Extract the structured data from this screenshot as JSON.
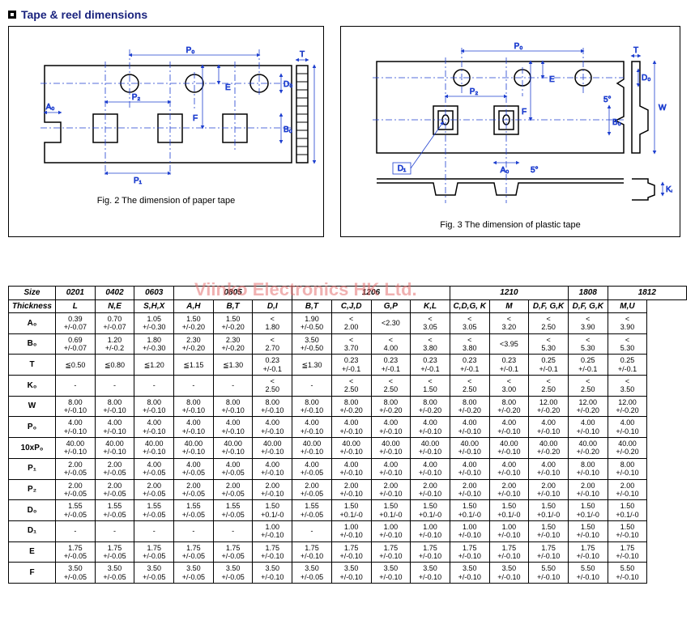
{
  "title": "Tape & reel dimensions",
  "fig2_caption": "Fig. 2 The dimension of paper tape",
  "fig3_caption": "Fig. 3 The dimension of plastic tape",
  "watermark": "Viinko Electronics HK Ltd.",
  "diagram_labels": {
    "P0": "P₀",
    "P1": "P₁",
    "P2": "P₂",
    "A0": "A₀",
    "B0": "B₀",
    "D0": "D₀",
    "D1": "D₁",
    "K0": "K₀",
    "E": "E",
    "F": "F",
    "T": "T",
    "W": "W",
    "5deg": "5°"
  },
  "colors": {
    "diagram_stroke": "#000000",
    "dim_line": "#1e3fcf",
    "center_line": "#1e3fcf",
    "header_text": "#1a237e",
    "watermark": "#e57373"
  },
  "table": {
    "size_label": "Size",
    "thickness_label": "Thickness",
    "size_groups": [
      {
        "label": "0201",
        "span": 1
      },
      {
        "label": "0402",
        "span": 1
      },
      {
        "label": "0603",
        "span": 1
      },
      {
        "label": "0805",
        "span": 3
      },
      {
        "label": "1206",
        "span": 4
      },
      {
        "label": "1210",
        "span": 3
      },
      {
        "label": "1808",
        "span": 1
      },
      {
        "label": "1812",
        "span": 2
      }
    ],
    "thickness_cols": [
      "L",
      "N,E",
      "S,H,X",
      "A,H",
      "B,T",
      "D,I",
      "B,T",
      "C,J,D",
      "G,P",
      "K,L",
      "C,D,G, K",
      "M",
      "D,F, G,K",
      "D,F, G,K",
      "M,U"
    ],
    "rows": [
      {
        "h": "A₀",
        "c": [
          "0.39 +/-0.07",
          "0.70 +/-0.07",
          "1.05 +/-0.30",
          "1.50 +/-0.20",
          "1.50 +/-0.20",
          "< 1.80",
          "1.90 +/-0.50",
          "< 2.00",
          "<2.30",
          "< 3.05",
          "< 3.05",
          "< 3.20",
          "< 2.50",
          "< 3.90",
          "< 3.90"
        ]
      },
      {
        "h": "B₀",
        "c": [
          "0.69 +/-0.07",
          "1.20 +/-0.2",
          "1.80 +/-0.30",
          "2.30 +/-0.20",
          "2.30 +/-0.20",
          "< 2.70",
          "3.50 +/-0.50",
          "< 3.70",
          "< 4.00",
          "< 3.80",
          "< 3.80",
          "<3.95",
          "< 5.30",
          "< 5.30",
          "< 5.30"
        ]
      },
      {
        "h": "T",
        "c": [
          "≦0.50",
          "≦0.80",
          "≦1.20",
          "≦1.15",
          "≦1.30",
          "0.23 +/-0.1",
          "≦1.30",
          "0.23 +/-0.1",
          "0.23 +/-0.1",
          "0.23 +/-0.1",
          "0.23 +/-0.1",
          "0.23 +/-0.1",
          "0.25 +/-0.1",
          "0.25 +/-0.1",
          "0.25 +/-0.1"
        ]
      },
      {
        "h": "K₀",
        "c": [
          "-",
          "-",
          "-",
          "-",
          "-",
          "< 2.50",
          "-",
          "< 2.50",
          "< 2.50",
          "< 1.50",
          "< 2.50",
          "< 3.00",
          "< 2.50",
          "< 2.50",
          "< 3.50"
        ]
      },
      {
        "h": "W",
        "c": [
          "8.00 +/-0.10",
          "8.00 +/-0.10",
          "8.00 +/-0.10",
          "8.00 +/-0.10",
          "8.00 +/-0.10",
          "8.00 +/-0.10",
          "8.00 +/-0.10",
          "8.00 +/-0.20",
          "8.00 +/-0.20",
          "8.00 +/-0.20",
          "8.00 +/-0.20",
          "8.00 +/-0.20",
          "12.00 +/-0.20",
          "12.00 +/-0.20",
          "12.00 +/-0.20"
        ]
      },
      {
        "h": "P₀",
        "c": [
          "4.00 +/-0.10",
          "4.00 +/-0.10",
          "4.00 +/-0.10",
          "4.00 +/-0.10",
          "4.00 +/-0.10",
          "4.00 +/-0.10",
          "4.00 +/-0.10",
          "4.00 +/-0.10",
          "4.00 +/-0.10",
          "4.00 +/-0.10",
          "4.00 +/-0.10",
          "4.00 +/-0.10",
          "4.00 +/-0.10",
          "4.00 +/-0.10",
          "4.00 +/-0.10"
        ]
      },
      {
        "h": "10xP₀",
        "c": [
          "40.00 +/-0.10",
          "40.00 +/-0.10",
          "40.00 +/-0.10",
          "40.00 +/-0.10",
          "40.00 +/-0.10",
          "40.00 +/-0.10",
          "40.00 +/-0.10",
          "40.00 +/-0.10",
          "40.00 +/-0.10",
          "40.00 +/-0.10",
          "40.00 +/-0.10",
          "40.00 +/-0.10",
          "40.00 +/-0.20",
          "40.00 +/-0.20",
          "40.00 +/-0.20"
        ]
      },
      {
        "h": "P₁",
        "c": [
          "2.00 +/-0.05",
          "2.00 +/-0.05",
          "4.00 +/-0.05",
          "4.00 +/-0.05",
          "4.00 +/-0.05",
          "4.00 +/-0.10",
          "4.00 +/-0.05",
          "4.00 +/-0.10",
          "4.00 +/-0.10",
          "4.00 +/-0.10",
          "4.00 +/-0.10",
          "4.00 +/-0.10",
          "4.00 +/-0.10",
          "8.00 +/-0.10",
          "8.00 +/-0.10"
        ]
      },
      {
        "h": "P₂",
        "c": [
          "2.00 +/-0.05",
          "2.00 +/-0.05",
          "2.00 +/-0.05",
          "2.00 +/-0.05",
          "2.00 +/-0.05",
          "2.00 +/-0.10",
          "2.00 +/-0.05",
          "2.00 +/-0.10",
          "2.00 +/-0.10",
          "2.00 +/-0.10",
          "2.00 +/-0.10",
          "2.00 +/-0.10",
          "2.00 +/-0.10",
          "2.00 +/-0.10",
          "2.00 +/-0.10"
        ]
      },
      {
        "h": "D₀",
        "c": [
          "1.55 +/-0.05",
          "1.55 +/-0.05",
          "1.55 +/-0.05",
          "1.55 +/-0.05",
          "1.55 +/-0.05",
          "1.50 +0.1/-0",
          "1.55 +/-0.05",
          "1.50 +0.1/-0",
          "1.50 +0.1/-0",
          "1.50 +0.1/-0",
          "1.50 +0.1/-0",
          "1.50 +0.1/-0",
          "1.50 +0.1/-0",
          "1.50 +0.1/-0",
          "1.50 +0.1/-0"
        ]
      },
      {
        "h": "D₁",
        "c": [
          "-",
          "-",
          "-",
          "-",
          "-",
          "1.00 +/-0.10",
          "-",
          "1.00 +/-0.10",
          "1.00 +/-0.10",
          "1.00 +/-0.10",
          "1.00 +/-0.10",
          "1.00 +/-0.10",
          "1.50 +/-0.10",
          "1.50 +/-0.10",
          "1.50 +/-0.10"
        ]
      },
      {
        "h": "E",
        "c": [
          "1.75 +/-0.05",
          "1.75 +/-0.05",
          "1.75 +/-0.05",
          "1.75 +/-0.05",
          "1.75 +/-0.05",
          "1.75 +/-0.10",
          "1.75 +/-0.10",
          "1.75 +/-0.10",
          "1.75 +/-0.10",
          "1.75 +/-0.10",
          "1.75 +/-0.10",
          "1.75 +/-0.10",
          "1.75 +/-0.10",
          "1.75 +/-0.10",
          "1.75 +/-0.10"
        ]
      },
      {
        "h": "F",
        "c": [
          "3.50 +/-0.05",
          "3.50 +/-0.05",
          "3.50 +/-0.05",
          "3.50 +/-0.05",
          "3.50 +/-0.05",
          "3.50 +/-0.10",
          "3.50 +/-0.05",
          "3.50 +/-0.10",
          "3.50 +/-0.10",
          "3.50 +/-0.10",
          "3.50 +/-0.10",
          "3.50 +/-0.10",
          "5.50 +/-0.10",
          "5.50 +/-0.10",
          "5.50 +/-0.10"
        ]
      }
    ]
  }
}
